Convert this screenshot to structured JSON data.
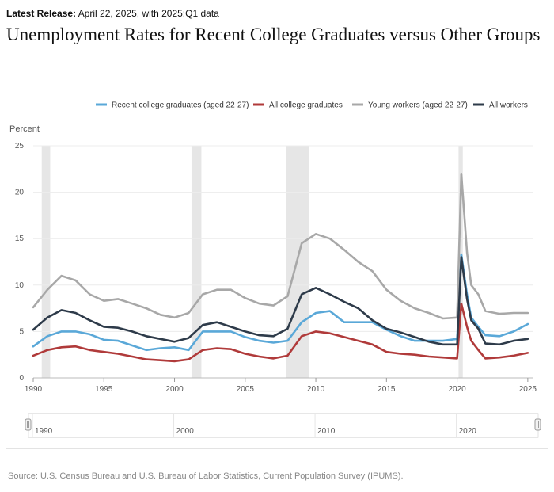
{
  "header": {
    "release_label": "Latest Release:",
    "release_text": " April 22, 2025, with 2025:Q1 data",
    "title": "Unemployment Rates for Recent College Graduates versus Other Groups"
  },
  "source": "Source: U.S. Census Bureau and U.S. Bureau of Labor Statistics, Current Population Survey (IPUMS).",
  "chart_data": {
    "type": "line",
    "title": "Unemployment Rates for Recent College Graduates versus Other Groups",
    "ylabel": "Percent",
    "xlabel": "",
    "xlim": [
      1990,
      2025.4
    ],
    "ylim": [
      0,
      25
    ],
    "yticks": [
      0,
      5,
      10,
      15,
      20,
      25
    ],
    "xticks": [
      1990,
      1995,
      2000,
      2005,
      2010,
      2015,
      2020,
      2025
    ],
    "navigator_ticks": [
      1990,
      2000,
      2010,
      2020
    ],
    "grid": "horizontal",
    "legend_position": "top-right",
    "recessions": [
      [
        1990.6,
        1991.2
      ],
      [
        2001.2,
        2001.9
      ],
      [
        2007.9,
        2009.5
      ],
      [
        2020.1,
        2020.4
      ]
    ],
    "series": [
      {
        "name": "Recent college graduates (aged 22-27)",
        "color": "#5aa8d8",
        "points": [
          [
            1990,
            3.4
          ],
          [
            1991,
            4.5
          ],
          [
            1992,
            5.0
          ],
          [
            1993,
            5.0
          ],
          [
            1994,
            4.7
          ],
          [
            1995,
            4.1
          ],
          [
            1996,
            4.0
          ],
          [
            1997,
            3.5
          ],
          [
            1998,
            3.0
          ],
          [
            1999,
            3.2
          ],
          [
            2000,
            3.3
          ],
          [
            2001,
            3.0
          ],
          [
            2002,
            5.0
          ],
          [
            2003,
            5.0
          ],
          [
            2004,
            5.0
          ],
          [
            2005,
            4.4
          ],
          [
            2006,
            4.0
          ],
          [
            2007,
            3.8
          ],
          [
            2008,
            4.0
          ],
          [
            2009,
            6.0
          ],
          [
            2010,
            7.0
          ],
          [
            2011,
            7.2
          ],
          [
            2012,
            6.0
          ],
          [
            2013,
            6.0
          ],
          [
            2014,
            6.0
          ],
          [
            2015,
            5.2
          ],
          [
            2016,
            4.5
          ],
          [
            2017,
            4.0
          ],
          [
            2018,
            4.0
          ],
          [
            2019,
            4.0
          ],
          [
            2020,
            4.2
          ],
          [
            2020.3,
            13.3
          ],
          [
            2020.7,
            9.0
          ],
          [
            2021,
            6.5
          ],
          [
            2021.5,
            5.5
          ],
          [
            2022,
            4.6
          ],
          [
            2023,
            4.5
          ],
          [
            2024,
            5.0
          ],
          [
            2025,
            5.8
          ]
        ]
      },
      {
        "name": "All college graduates",
        "color": "#b03a3a",
        "points": [
          [
            1990,
            2.4
          ],
          [
            1991,
            3.0
          ],
          [
            1992,
            3.3
          ],
          [
            1993,
            3.4
          ],
          [
            1994,
            3.0
          ],
          [
            1995,
            2.8
          ],
          [
            1996,
            2.6
          ],
          [
            1997,
            2.3
          ],
          [
            1998,
            2.0
          ],
          [
            1999,
            1.9
          ],
          [
            2000,
            1.8
          ],
          [
            2001,
            2.0
          ],
          [
            2002,
            3.0
          ],
          [
            2003,
            3.2
          ],
          [
            2004,
            3.1
          ],
          [
            2005,
            2.6
          ],
          [
            2006,
            2.3
          ],
          [
            2007,
            2.1
          ],
          [
            2008,
            2.4
          ],
          [
            2009,
            4.5
          ],
          [
            2010,
            5.0
          ],
          [
            2011,
            4.8
          ],
          [
            2012,
            4.4
          ],
          [
            2013,
            4.0
          ],
          [
            2014,
            3.6
          ],
          [
            2015,
            2.8
          ],
          [
            2016,
            2.6
          ],
          [
            2017,
            2.5
          ],
          [
            2018,
            2.3
          ],
          [
            2019,
            2.2
          ],
          [
            2020,
            2.1
          ],
          [
            2020.3,
            8.0
          ],
          [
            2020.7,
            5.5
          ],
          [
            2021,
            4.0
          ],
          [
            2021.5,
            3.0
          ],
          [
            2022,
            2.1
          ],
          [
            2023,
            2.2
          ],
          [
            2024,
            2.4
          ],
          [
            2025,
            2.7
          ]
        ]
      },
      {
        "name": "Young workers (aged 22-27)",
        "color": "#a8a8a8",
        "points": [
          [
            1990,
            7.6
          ],
          [
            1991,
            9.5
          ],
          [
            1992,
            11.0
          ],
          [
            1993,
            10.5
          ],
          [
            1994,
            9.0
          ],
          [
            1995,
            8.3
          ],
          [
            1996,
            8.5
          ],
          [
            1997,
            8.0
          ],
          [
            1998,
            7.5
          ],
          [
            1999,
            6.8
          ],
          [
            2000,
            6.5
          ],
          [
            2001,
            7.0
          ],
          [
            2002,
            9.0
          ],
          [
            2003,
            9.5
          ],
          [
            2004,
            9.5
          ],
          [
            2005,
            8.6
          ],
          [
            2006,
            8.0
          ],
          [
            2007,
            7.8
          ],
          [
            2008,
            8.8
          ],
          [
            2009,
            14.5
          ],
          [
            2010,
            15.5
          ],
          [
            2011,
            15.0
          ],
          [
            2012,
            13.8
          ],
          [
            2013,
            12.5
          ],
          [
            2014,
            11.5
          ],
          [
            2015,
            9.5
          ],
          [
            2016,
            8.3
          ],
          [
            2017,
            7.5
          ],
          [
            2018,
            7.0
          ],
          [
            2019,
            6.4
          ],
          [
            2020,
            6.5
          ],
          [
            2020.3,
            22.0
          ],
          [
            2020.7,
            13.5
          ],
          [
            2021,
            10.0
          ],
          [
            2021.5,
            9.0
          ],
          [
            2022,
            7.2
          ],
          [
            2023,
            6.9
          ],
          [
            2024,
            7.0
          ],
          [
            2025,
            7.0
          ]
        ]
      },
      {
        "name": "All workers",
        "color": "#2e3b4a",
        "points": [
          [
            1990,
            5.2
          ],
          [
            1991,
            6.5
          ],
          [
            1992,
            7.3
          ],
          [
            1993,
            7.0
          ],
          [
            1994,
            6.2
          ],
          [
            1995,
            5.5
          ],
          [
            1996,
            5.4
          ],
          [
            1997,
            5.0
          ],
          [
            1998,
            4.5
          ],
          [
            1999,
            4.2
          ],
          [
            2000,
            3.9
          ],
          [
            2001,
            4.3
          ],
          [
            2002,
            5.7
          ],
          [
            2003,
            6.0
          ],
          [
            2004,
            5.5
          ],
          [
            2005,
            5.0
          ],
          [
            2006,
            4.6
          ],
          [
            2007,
            4.5
          ],
          [
            2008,
            5.3
          ],
          [
            2009,
            9.0
          ],
          [
            2010,
            9.7
          ],
          [
            2011,
            9.0
          ],
          [
            2012,
            8.2
          ],
          [
            2013,
            7.5
          ],
          [
            2014,
            6.2
          ],
          [
            2015,
            5.3
          ],
          [
            2016,
            4.9
          ],
          [
            2017,
            4.4
          ],
          [
            2018,
            3.9
          ],
          [
            2019,
            3.6
          ],
          [
            2020,
            3.6
          ],
          [
            2020.3,
            13.0
          ],
          [
            2020.7,
            8.5
          ],
          [
            2021,
            6.2
          ],
          [
            2021.5,
            5.3
          ],
          [
            2022,
            3.7
          ],
          [
            2023,
            3.6
          ],
          [
            2024,
            4.0
          ],
          [
            2025,
            4.2
          ]
        ]
      }
    ]
  }
}
